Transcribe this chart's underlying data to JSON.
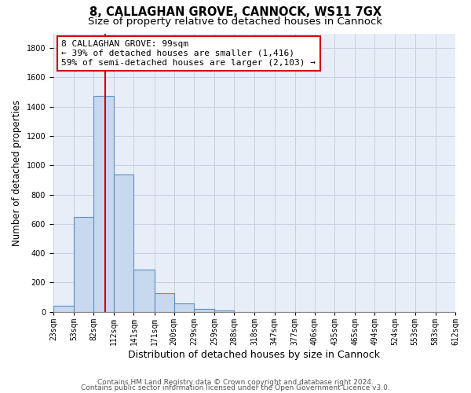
{
  "title": "8, CALLAGHAN GROVE, CANNOCK, WS11 7GX",
  "subtitle": "Size of property relative to detached houses in Cannock",
  "xlabel": "Distribution of detached houses by size in Cannock",
  "ylabel": "Number of detached properties",
  "bar_color": "#c8d8ee",
  "bar_edge_color": "#5b8fc4",
  "bar_heights": [
    40,
    650,
    1475,
    935,
    290,
    125,
    60,
    22,
    12,
    0,
    0,
    0,
    0,
    0,
    0,
    0,
    0,
    0,
    0,
    0
  ],
  "bin_edges": [
    23,
    53,
    82,
    112,
    141,
    171,
    200,
    229,
    259,
    288,
    318,
    347,
    377,
    406,
    435,
    465,
    494,
    524,
    553,
    583,
    612
  ],
  "tick_labels": [
    "23sqm",
    "53sqm",
    "82sqm",
    "112sqm",
    "141sqm",
    "171sqm",
    "200sqm",
    "229sqm",
    "259sqm",
    "288sqm",
    "318sqm",
    "347sqm",
    "377sqm",
    "406sqm",
    "435sqm",
    "465sqm",
    "494sqm",
    "524sqm",
    "553sqm",
    "583sqm",
    "612sqm"
  ],
  "ylim": [
    0,
    1900
  ],
  "yticks": [
    0,
    200,
    400,
    600,
    800,
    1000,
    1200,
    1400,
    1600,
    1800
  ],
  "grid_color": "#c8cfe0",
  "background_color": "#e8eef8",
  "property_line_x": 99,
  "property_line_color": "#cc0000",
  "annotation_line1": "8 CALLAGHAN GROVE: 99sqm",
  "annotation_line2": "← 39% of detached houses are smaller (1,416)",
  "annotation_line3": "59% of semi-detached houses are larger (2,103) →",
  "annotation_box_color": "#cc0000",
  "footer_line1": "Contains HM Land Registry data © Crown copyright and database right 2024.",
  "footer_line2": "Contains public sector information licensed under the Open Government Licence v3.0.",
  "title_fontsize": 10.5,
  "subtitle_fontsize": 9.5,
  "ylabel_fontsize": 8.5,
  "xlabel_fontsize": 9,
  "tick_fontsize": 7,
  "annotation_fontsize": 8,
  "footer_fontsize": 6.5
}
